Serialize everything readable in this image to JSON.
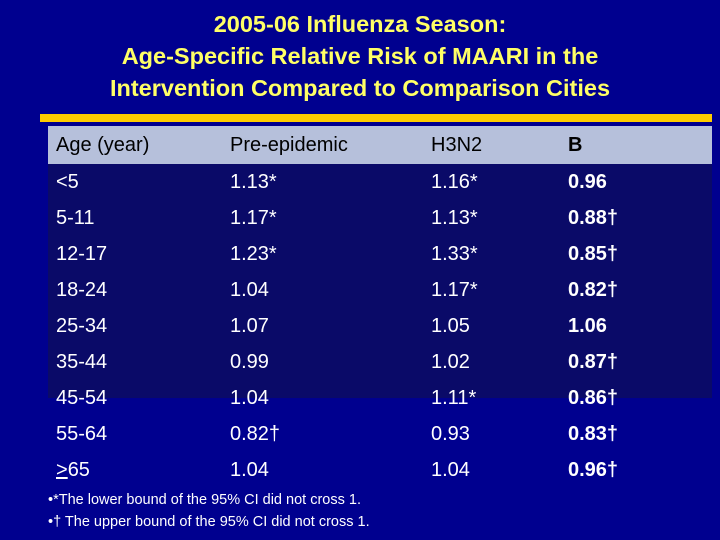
{
  "title": {
    "line1": "2005-06 Influenza Season:",
    "line2": "Age-Specific Relative Risk of MAARI in the",
    "line3": "Intervention Compared to Comparison Cities"
  },
  "colors": {
    "background": "#00008f",
    "title": "#ffff66",
    "header_band": "#b6c0db",
    "accent_bar": "#ffcc00"
  },
  "table": {
    "headers": [
      "Age (year)",
      "Pre-epidemic",
      "H3N2",
      "B"
    ],
    "rows": [
      [
        "<5",
        "1.13*",
        "1.16*",
        "0.96"
      ],
      [
        "5-11",
        "1.17*",
        "1.13*",
        "0.88†"
      ],
      [
        "12-17",
        "1.23*",
        "1.33*",
        "0.85†"
      ],
      [
        "18-24",
        "1.04",
        "1.17*",
        "0.82†"
      ],
      [
        "25-34",
        "1.07",
        "1.05",
        "1.06"
      ],
      [
        "35-44",
        "0.99",
        "1.02",
        "0.87†"
      ],
      [
        "45-54",
        "1.04",
        "1.11*",
        "0.86†"
      ],
      [
        "55-64",
        "0.82†",
        "0.93",
        "0.83†"
      ],
      [
        ">65",
        "1.04",
        "1.04",
        "0.96†"
      ]
    ]
  },
  "footnotes": [
    "•*The lower bound of the 95% CI did not cross 1.",
    "•† The upper bound of the 95% CI did not cross 1."
  ]
}
